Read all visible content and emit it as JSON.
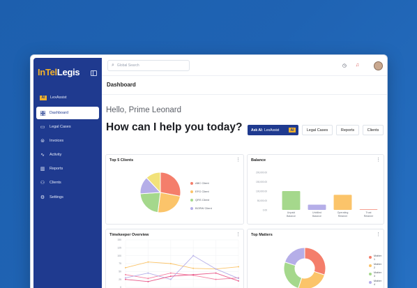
{
  "app": {
    "logo_part1": "InTel",
    "logo_part2": "Legis"
  },
  "sidebar": {
    "lexassist_label": "LexAssist",
    "lexassist_icon": "AI",
    "items": [
      {
        "label": "Dashboard",
        "icon": "grid-icon"
      },
      {
        "label": "Legal Cases",
        "icon": "folder-icon"
      },
      {
        "label": "Invoices",
        "icon": "dollar-icon"
      },
      {
        "label": "Activity",
        "icon": "activity-icon"
      },
      {
        "label": "Reports",
        "icon": "bar-chart-icon"
      },
      {
        "label": "Clients",
        "icon": "users-icon"
      },
      {
        "label": "Settings",
        "icon": "gear-icon"
      }
    ]
  },
  "topbar": {
    "search_placeholder": "Global Search"
  },
  "header": {
    "title": "Dashboard"
  },
  "greeting": {
    "hello": "Hello, Prime Leonard",
    "prompt": "How can I help you today?"
  },
  "quick_actions": {
    "ask_ai_bold": "Ask AI:",
    "ask_ai_name": "LexAssist",
    "chips": [
      "Legal Cases",
      "Reports",
      "Clients"
    ]
  },
  "colors": {
    "brand_blue": "#1f3a8f",
    "logo_gold": "#f2b12a"
  },
  "panels": {
    "top_clients": "Top 5 Clients",
    "balance": "Balance",
    "timekeeper": "Timekeeper Overview",
    "top_matters": "Top Matters"
  },
  "chart_data": [
    {
      "type": "pie",
      "title": "Top 5 Clients",
      "labels": [
        "ABC Client",
        "EFG Client",
        "QRS Client",
        "BGRW Client",
        ""
      ],
      "values": [
        28,
        24,
        22,
        14,
        12
      ],
      "colors": [
        "#f47e6b",
        "#fbc46a",
        "#a5d88c",
        "#b5aee8",
        "#f2e27a"
      ]
    },
    {
      "type": "bar",
      "title": "Balance",
      "categories": [
        "Unpaid\nBalance",
        "Unbilled\nBalance",
        "Operating\nRetainer",
        "Trust\nRetainer"
      ],
      "values": [
        100000,
        28000,
        80000,
        3000
      ],
      "ylim": [
        0,
        200000
      ],
      "yticks": [
        "200,000.00",
        "150,000.00",
        "100,000.00",
        "50,000.00",
        "0.00"
      ],
      "colors": [
        "#a5d88c",
        "#b5aee8",
        "#fbc46a",
        "#f47e6b"
      ]
    },
    {
      "type": "line",
      "title": "Timekeeper Overview",
      "categories": [
        "Jan",
        "Feb",
        "Mar",
        "Apr",
        "May",
        "Jun"
      ],
      "yticks": [
        "150",
        "125",
        "100",
        "75",
        "50",
        "25",
        "0"
      ],
      "ylim": [
        0,
        150
      ],
      "series": [
        {
          "color": "#fbc46a",
          "values": [
            62,
            80,
            75,
            60,
            58,
            65
          ]
        },
        {
          "color": "#f47ea0",
          "values": [
            40,
            28,
            45,
            38,
            25,
            30
          ]
        },
        {
          "color": "#b5aee8",
          "values": [
            30,
            45,
            25,
            100,
            58,
            28
          ]
        },
        {
          "color": "#e85a8a",
          "values": [
            25,
            18,
            35,
            40,
            45,
            20
          ]
        }
      ]
    },
    {
      "type": "pie",
      "title": "Top Matters",
      "labels": [
        "Matter 1",
        "Matter 2",
        "Matter 3",
        "Matter 4"
      ],
      "values": [
        30,
        25,
        25,
        20
      ],
      "colors": [
        "#f47e6b",
        "#fbc46a",
        "#a5d88c",
        "#b5aee8"
      ]
    }
  ]
}
